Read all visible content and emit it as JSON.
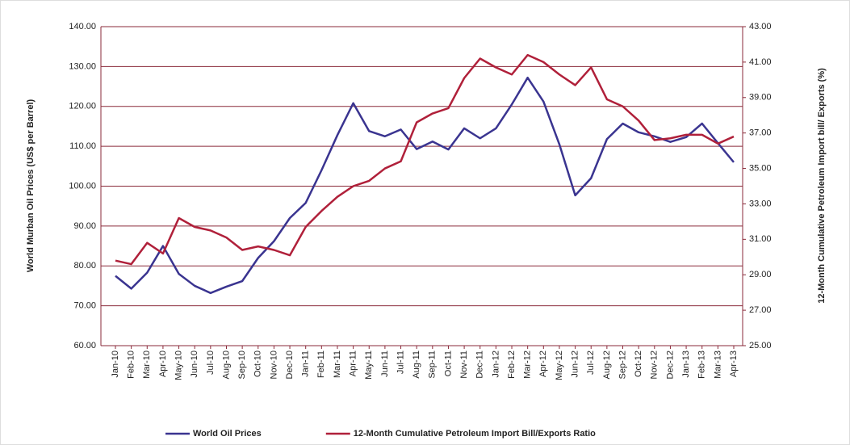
{
  "chart_data": {
    "type": "line",
    "y_label": "World Murban Oil Prices (US$ per Barrel)",
    "y2_label": "12-Month Cumulative Petroleum Import bill/ Exports (%)",
    "categories": [
      "Jan-10",
      "Feb-10",
      "Mar-10",
      "Apr-10",
      "May-10",
      "Jun-10",
      "Jul-10",
      "Aug-10",
      "Sep-10",
      "Oct-10",
      "Nov-10",
      "Dec-10",
      "Jan-11",
      "Feb-11",
      "Mar-11",
      "Apr-11",
      "May-11",
      "Jun-11",
      "Jul-11",
      "Aug-11",
      "Sep-11",
      "Oct-11",
      "Nov-11",
      "Dec-11",
      "Jan-12",
      "Feb-12",
      "Mar-12",
      "Apr-12",
      "May-12",
      "Jun-12",
      "Jul-12",
      "Aug-12",
      "Sep-12",
      "Oct-12",
      "Nov-12",
      "Dec-12",
      "Jan-13",
      "Feb-13",
      "Mar-13",
      "Apr-13"
    ],
    "series": [
      {
        "name": "World Oil Prices",
        "color": "#3a3490",
        "values": [
          77.5,
          74.3,
          78.3,
          85,
          78,
          75,
          73.2,
          74.8,
          76.2,
          82,
          86.2,
          92,
          95.8,
          104,
          112.8,
          120.8,
          113.8,
          112.5,
          114.2,
          109.3,
          111.2,
          109.2,
          114.5,
          112,
          114.5,
          120.5,
          127.2,
          121.2,
          110.5,
          97.7,
          102,
          111.8,
          115.7,
          113.5,
          112.5,
          111.1,
          112.3,
          115.7,
          110.8,
          106
        ]
      },
      {
        "name": "12-Month Cumulative Petroleum Import Bill/Exports Ratio",
        "color": "#b0203a",
        "axis": "y2",
        "values": [
          29.8,
          29.6,
          30.8,
          30.2,
          32.2,
          31.7,
          31.5,
          31.1,
          30.4,
          30.6,
          30.4,
          30.1,
          31.7,
          32.6,
          33.4,
          34,
          34.3,
          35,
          35.4,
          37.6,
          38.1,
          38.4,
          40.1,
          41.2,
          40.7,
          40.3,
          41.4,
          41,
          40.3,
          39.7,
          40.7,
          38.9,
          38.5,
          37.7,
          36.6,
          36.7,
          36.9,
          36.9,
          36.4,
          36.8
        ]
      }
    ],
    "ylim": [
      60,
      140
    ],
    "yticks": [
      {
        "value": 60,
        "label": "60.00"
      },
      {
        "value": 70,
        "label": "70.00"
      },
      {
        "value": 80,
        "label": "80.00"
      },
      {
        "value": 90,
        "label": "90.00"
      },
      {
        "value": 100,
        "label": "100.00"
      },
      {
        "value": 110,
        "label": "110.00"
      },
      {
        "value": 120,
        "label": "120.00"
      },
      {
        "value": 130,
        "label": "130.00"
      },
      {
        "value": 140,
        "label": "140.00"
      }
    ],
    "y2lim": [
      25,
      43
    ],
    "y2ticks": [
      {
        "value": 25,
        "label": "25.00"
      },
      {
        "value": 27,
        "label": "27.00"
      },
      {
        "value": 29,
        "label": "29.00"
      },
      {
        "value": 31,
        "label": "31.00"
      },
      {
        "value": 33,
        "label": "33.00"
      },
      {
        "value": 35,
        "label": "35.00"
      },
      {
        "value": 37,
        "label": "37.00"
      },
      {
        "value": 39,
        "label": "39.00"
      },
      {
        "value": 41,
        "label": "41.00"
      },
      {
        "value": 43,
        "label": "43.00"
      }
    ],
    "grid": true,
    "grid_color": "#8a2a3a",
    "legend": "bottom"
  }
}
